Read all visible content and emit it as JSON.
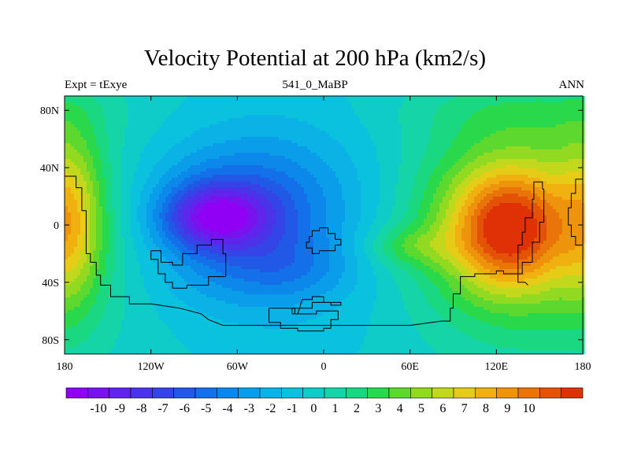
{
  "title": "Velocity Potential at 200 hPa (km2/s)",
  "left_string": "Expt = tExye",
  "center_string": "541_0_MaBP",
  "right_string": "ANN",
  "lat_ticks": [
    "80N",
    "40N",
    "0",
    "40S",
    "80S"
  ],
  "lon_ticks": [
    "180",
    "120W",
    "60W",
    "0",
    "60E",
    "120E",
    "180"
  ],
  "colorbar": {
    "labels": [
      "-10",
      "-9",
      "-8",
      "-7",
      "-6",
      "-5",
      "-4",
      "-3",
      "-2",
      "-1",
      "0",
      "1",
      "2",
      "3",
      "4",
      "5",
      "6",
      "7",
      "8",
      "9",
      "10"
    ],
    "colors": [
      "#8f00f5",
      "#7a12f0",
      "#6124ec",
      "#4a33e8",
      "#3444e6",
      "#2258e6",
      "#1470e8",
      "#0c88ea",
      "#0a9eea",
      "#0ab2e6",
      "#0ac2de",
      "#10ccc8",
      "#14d4a8",
      "#1ad882",
      "#2ad84c",
      "#5cd82e",
      "#92da22",
      "#c2d81c",
      "#e6cc16",
      "#f0b010",
      "#ee940c",
      "#e8740a",
      "#e45208",
      "#e03006"
    ]
  },
  "chart_data": {
    "type": "heatmap",
    "title": "Velocity Potential at 200 hPa (km2/s)",
    "variable": "velocity potential",
    "level": "200 hPa",
    "units": "km2/s",
    "lon_range": [
      -180,
      180
    ],
    "lat_range": [
      -90,
      90
    ],
    "contour_range": [
      -10,
      10
    ],
    "contour_interval": 1,
    "features": [
      {
        "name": "minimum",
        "lon": -75,
        "lat": 5,
        "value": -9.5
      },
      {
        "name": "maximum",
        "lon": 128,
        "lat": -5,
        "value": 9.3
      }
    ]
  }
}
